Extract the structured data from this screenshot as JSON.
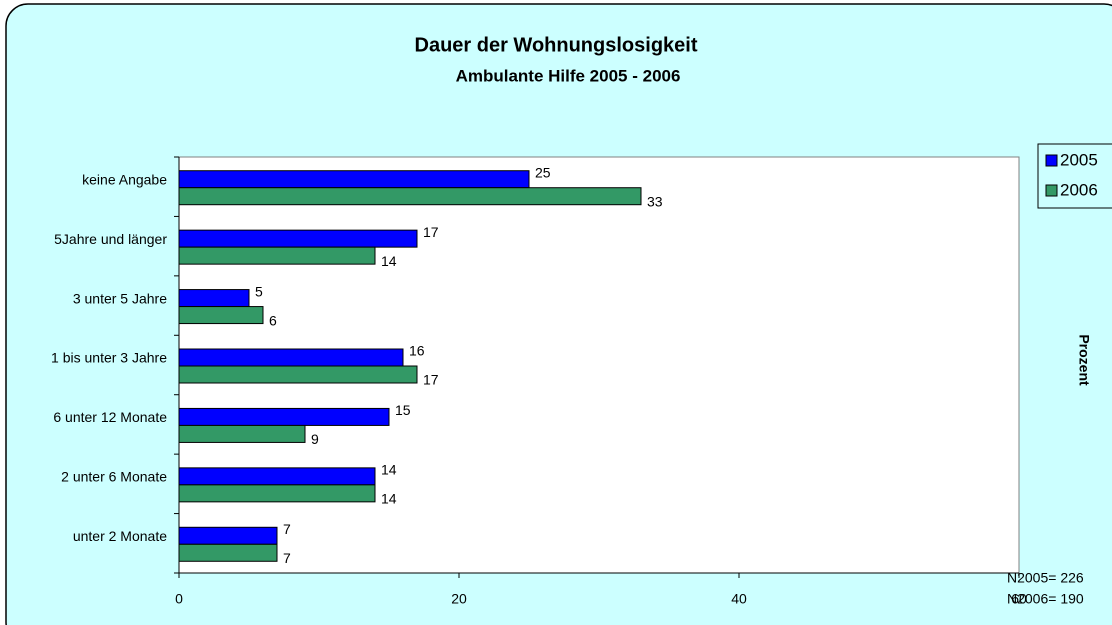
{
  "chart_data": {
    "type": "bar",
    "orientation": "horizontal",
    "title": "Dauer der Wohnungslosigkeit",
    "subtitle": "Ambulante Hilfe 2005 - 2006",
    "x_axis_label": "Prozent",
    "categories": [
      "keine Angabe",
      "5Jahre und länger",
      "3 unter 5 Jahre",
      "1 bis unter 3 Jahre",
      "6 unter 12 Monate",
      "2 unter 6 Monate",
      "unter 2 Monate"
    ],
    "series": [
      {
        "name": "2005",
        "color": "#0000ff",
        "values": [
          25,
          17,
          5,
          16,
          15,
          14,
          7
        ]
      },
      {
        "name": "2006",
        "color": "#339966",
        "values": [
          33,
          14,
          6,
          17,
          9,
          14,
          7
        ]
      }
    ],
    "xlim": [
      0,
      60
    ],
    "xticks": [
      0,
      20,
      40,
      60
    ],
    "legend": "right",
    "annotations": [
      "N2005= 226",
      "N2006= 190"
    ]
  }
}
